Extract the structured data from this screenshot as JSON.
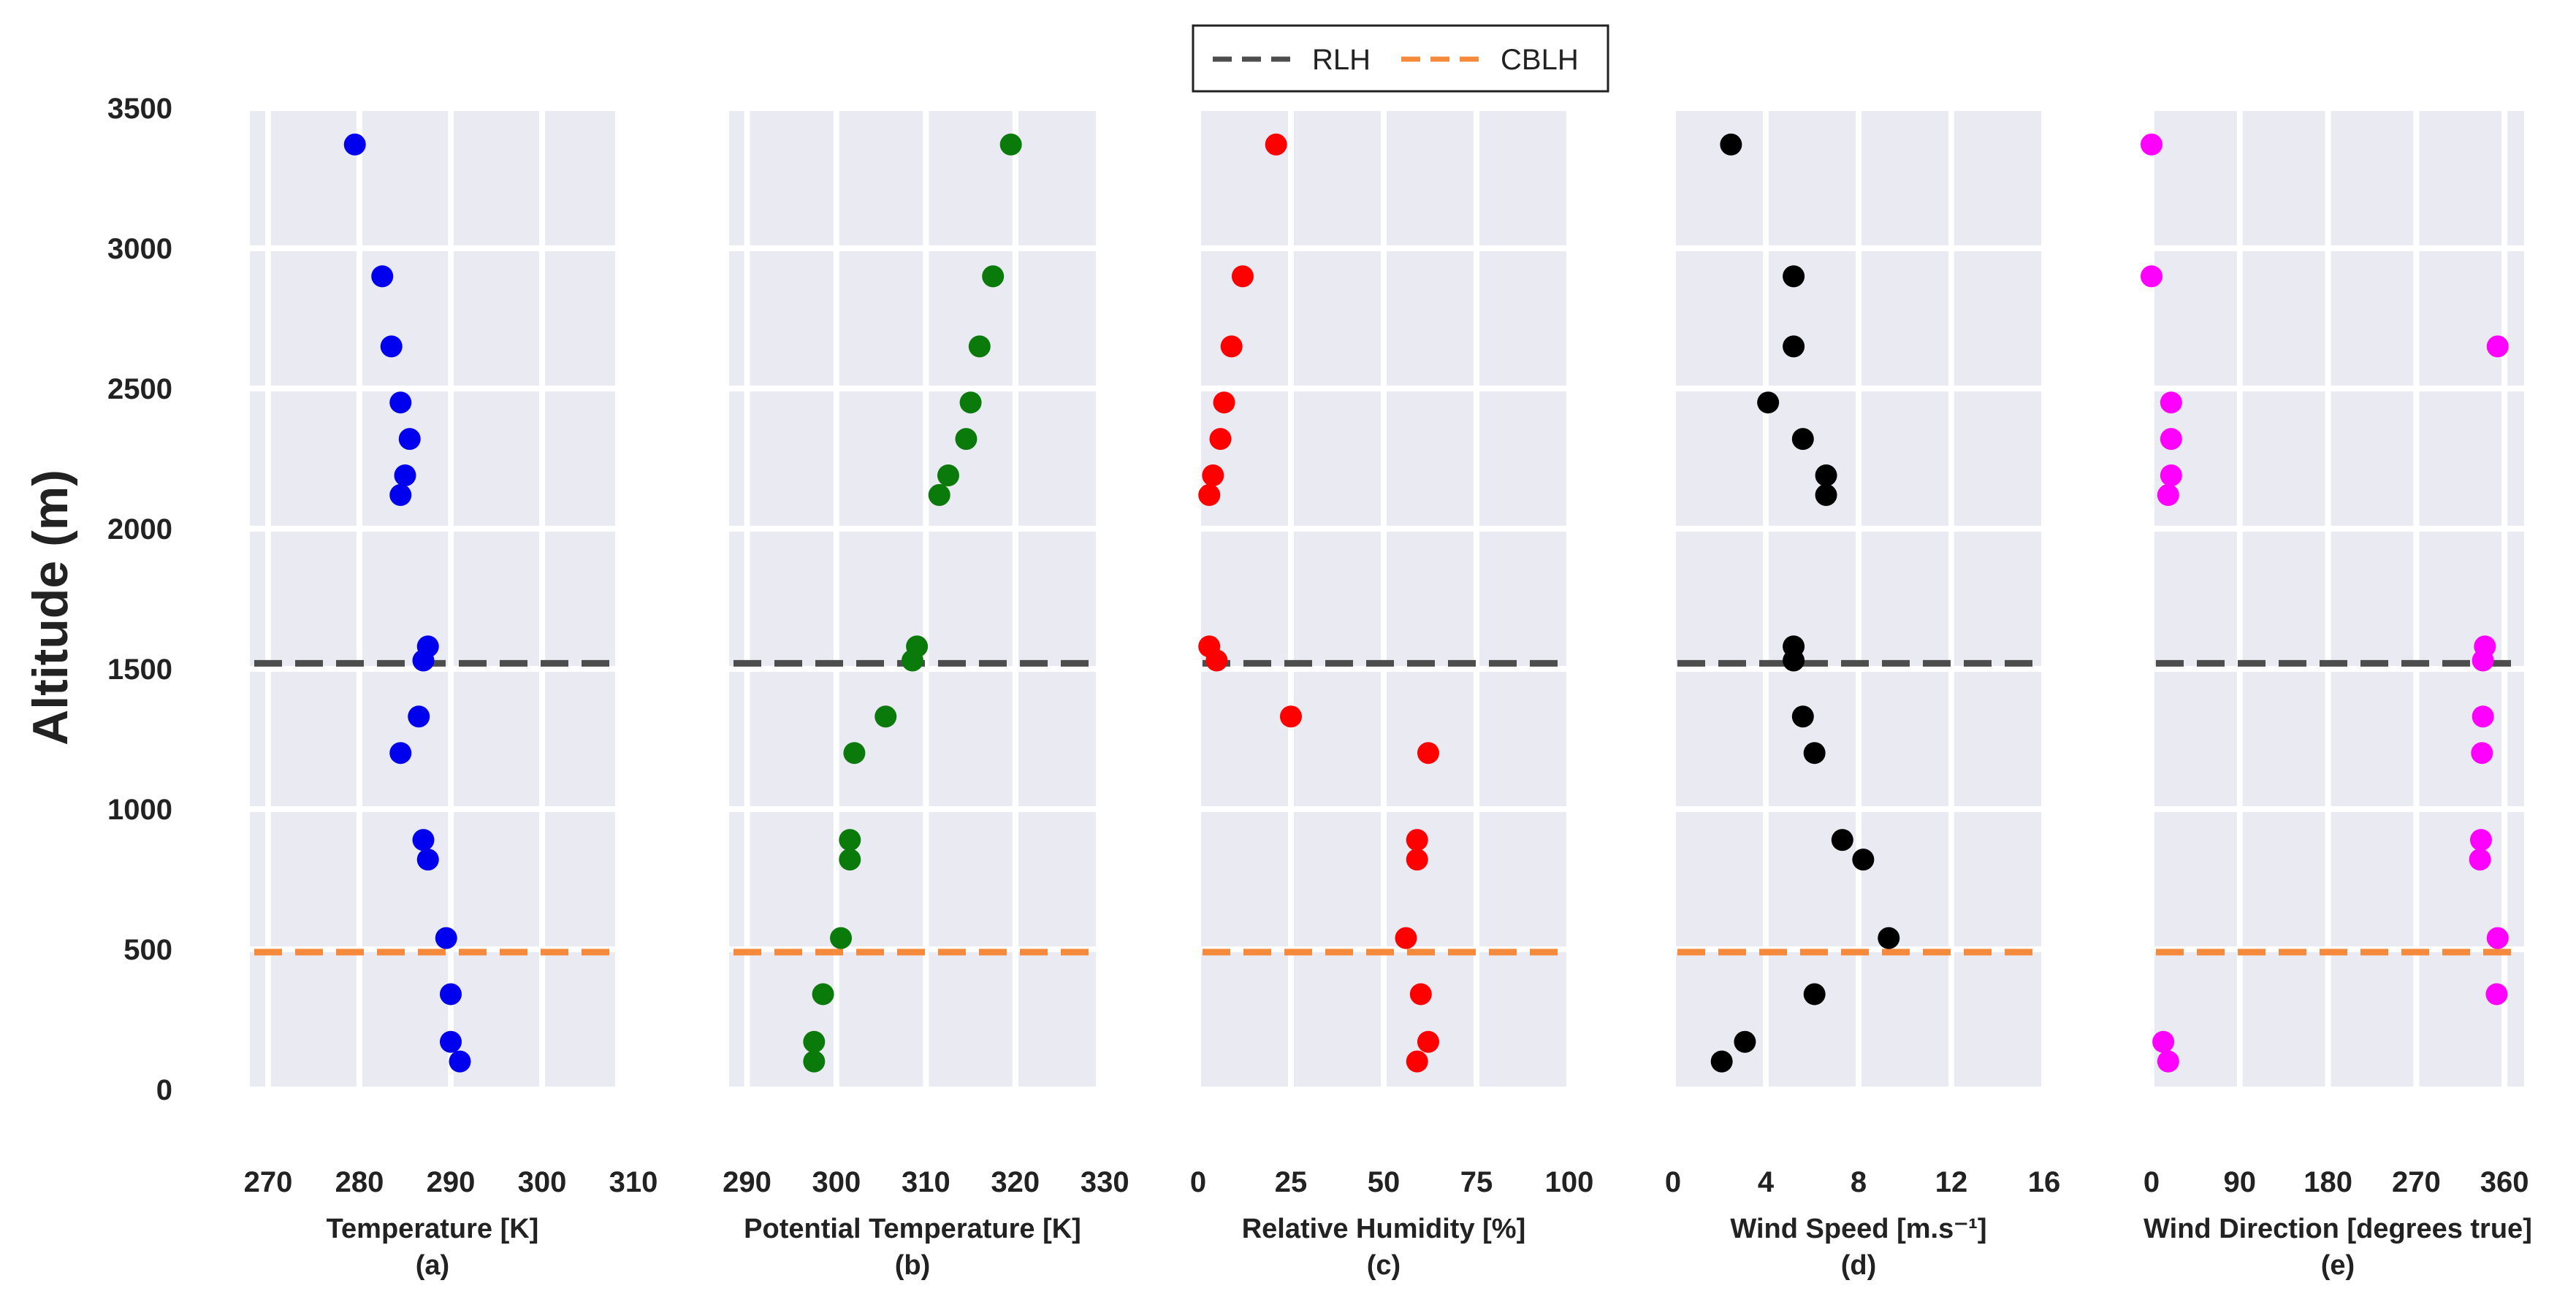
{
  "chart_data": {
    "type": "scatter",
    "ylabel": "Altitude (m)",
    "ylim": [
      0,
      3500
    ],
    "yticks": [
      "0",
      "500",
      "1000",
      "1500",
      "2000",
      "2500",
      "3000",
      "3500"
    ],
    "altitudes": [
      3370,
      2900,
      2650,
      2450,
      2320,
      2190,
      2120,
      1580,
      1530,
      1330,
      1200,
      890,
      820,
      540,
      340,
      170,
      100
    ],
    "legend": [
      {
        "name": "RLH",
        "value": 1520,
        "color": "#4d4d4d"
      },
      {
        "name": "CBLH",
        "value": 490,
        "color": "#f5893c"
      }
    ],
    "panels": [
      {
        "id": "a",
        "xlabel": "Temperature [K]",
        "sublabel": "(a)",
        "xlim": [
          268,
          308
        ],
        "xticks": [
          "270",
          "280",
          "290",
          "300",
          "310"
        ],
        "color": "#0000ee",
        "values": [
          279.5,
          282.5,
          283.5,
          284.5,
          285.5,
          285,
          284.5,
          287.5,
          287,
          286.5,
          284.5,
          287,
          287.5,
          289.5,
          290,
          290,
          291
        ]
      },
      {
        "id": "b",
        "xlabel": "Potential Temperature [K]",
        "sublabel": "(b)",
        "xlim": [
          288,
          329
        ],
        "xticks": [
          "290",
          "300",
          "310",
          "320",
          "330"
        ],
        "color": "#0a7a0a",
        "values": [
          319.5,
          317.5,
          316,
          315,
          314.5,
          312.5,
          311.5,
          309,
          308.5,
          305.5,
          302,
          301.5,
          301.5,
          300.5,
          298.5,
          297.5,
          297.5
        ]
      },
      {
        "id": "c",
        "xlabel": "Relative Humidity [%]",
        "sublabel": "(c)",
        "xlim": [
          0,
          100
        ],
        "xticks": [
          "0",
          "25",
          "50",
          "75",
          "100"
        ],
        "color": "#ff0000",
        "values": [
          21,
          12,
          9,
          7,
          6,
          4,
          3,
          3,
          5,
          25,
          62,
          59,
          59,
          56,
          60,
          62,
          59
        ]
      },
      {
        "id": "d",
        "xlabel": "Wind Speed [m.s⁻¹]",
        "sublabel": "(d)",
        "xlim": [
          0,
          16
        ],
        "xticks": [
          "0",
          "4",
          "8",
          "12",
          "16"
        ],
        "color": "#000000",
        "values": [
          2.5,
          5.2,
          5.2,
          4.1,
          5.6,
          6.6,
          6.6,
          5.2,
          5.2,
          5.6,
          6.1,
          7.3,
          8.2,
          9.3,
          6.1,
          3.1,
          2.1
        ]
      },
      {
        "id": "e",
        "xlabel": "Wind Direction [degrees true]",
        "sublabel": "(e)",
        "xlim": [
          0,
          380
        ],
        "xticks": [
          "0",
          "90",
          "180",
          "270",
          "360"
        ],
        "color": "#ff00ff",
        "values": [
          0,
          0,
          353,
          20,
          20,
          20,
          17,
          340,
          338,
          338,
          337,
          336,
          335,
          353,
          352,
          12,
          17
        ]
      }
    ]
  }
}
